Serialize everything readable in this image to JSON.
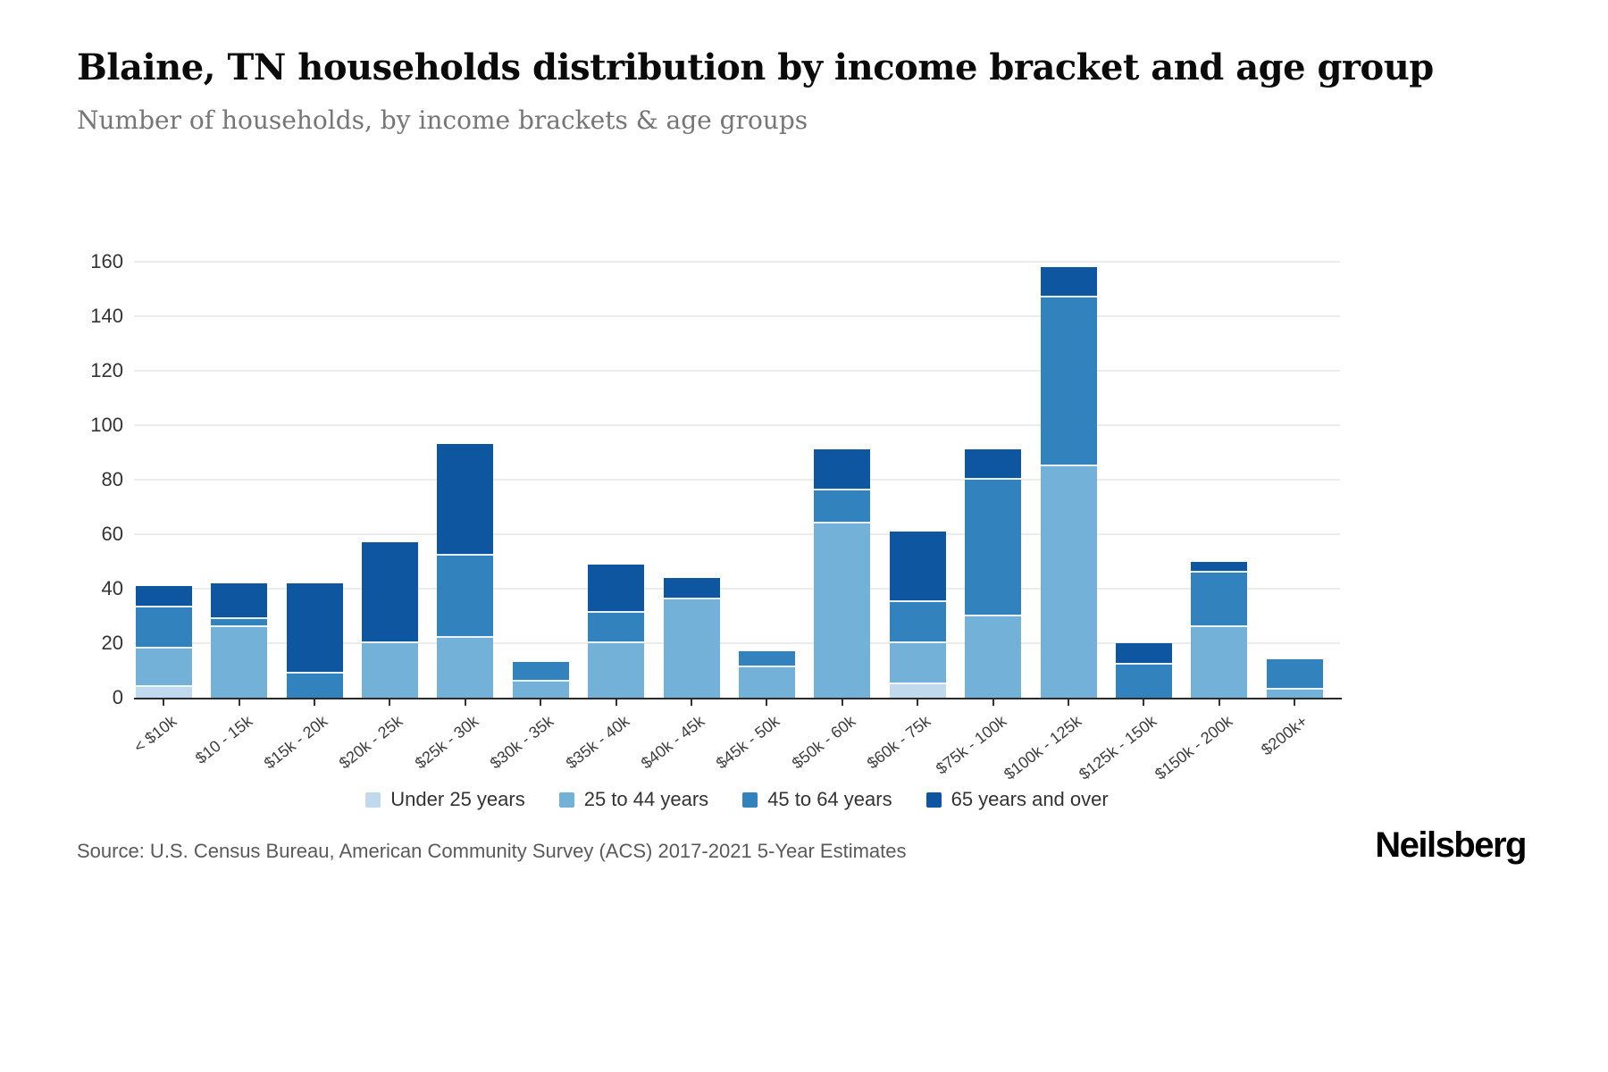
{
  "header": {
    "title": "Blaine, TN households distribution by income bracket and age group",
    "subtitle": "Number of households, by income brackets & age groups"
  },
  "footer": {
    "source": "Source: U.S. Census Bureau, American Community Survey (ACS) 2017-2021 5-Year Estimates",
    "brand": "Neilsberg"
  },
  "colors": {
    "under_25": "#c1d9ec",
    "age_25_44": "#73b1d8",
    "age_45_64": "#3182bd",
    "age_65_over": "#0f56a0",
    "gridline": "#ececec",
    "axis_line": "#2b2b2b",
    "title_text": "#0b0b0b",
    "subtitle_text": "#767676",
    "tick_text": "#333333",
    "source_text": "#5a5a5a"
  },
  "chart_data": {
    "type": "bar",
    "stacked": true,
    "title": "Blaine, TN households distribution by income bracket and age group",
    "xlabel": "",
    "ylabel": "Number of households",
    "ylim": [
      0,
      160
    ],
    "ytick_step": 20,
    "grid": true,
    "legend_position": "bottom",
    "categories": [
      "< $10k",
      "$10 - 15k",
      "$15k - 20k",
      "$20k - 25k",
      "$25k - 30k",
      "$30k - 35k",
      "$35k - 40k",
      "$40k - 45k",
      "$45k - 50k",
      "$50k - 60k",
      "$60k - 75k",
      "$75k - 100k",
      "$100k - 125k",
      "$125k - 150k",
      "$150k - 200k",
      "$200k+"
    ],
    "series": [
      {
        "name": "Under 25 years",
        "color": "#c1d9ec",
        "values": [
          4,
          0,
          0,
          0,
          0,
          0,
          0,
          0,
          0,
          0,
          5,
          0,
          0,
          0,
          0,
          0
        ]
      },
      {
        "name": "25 to 44 years",
        "color": "#73b1d8",
        "values": [
          14,
          26,
          0,
          20,
          22,
          6,
          20,
          36,
          11,
          64,
          15,
          30,
          85,
          0,
          26,
          3
        ]
      },
      {
        "name": "45 to 64 years",
        "color": "#3182bd",
        "values": [
          15,
          3,
          9,
          0,
          30,
          7,
          11,
          0,
          6,
          12,
          15,
          50,
          62,
          12,
          20,
          11
        ]
      },
      {
        "name": "65 years and over",
        "color": "#0f56a0",
        "values": [
          8,
          13,
          33,
          37,
          41,
          0,
          18,
          8,
          0,
          15,
          26,
          11,
          11,
          8,
          4,
          0
        ]
      }
    ],
    "totals": [
      41,
      42,
      42,
      57,
      93,
      13,
      49,
      44,
      17,
      91,
      61,
      91,
      158,
      20,
      50,
      14
    ]
  }
}
